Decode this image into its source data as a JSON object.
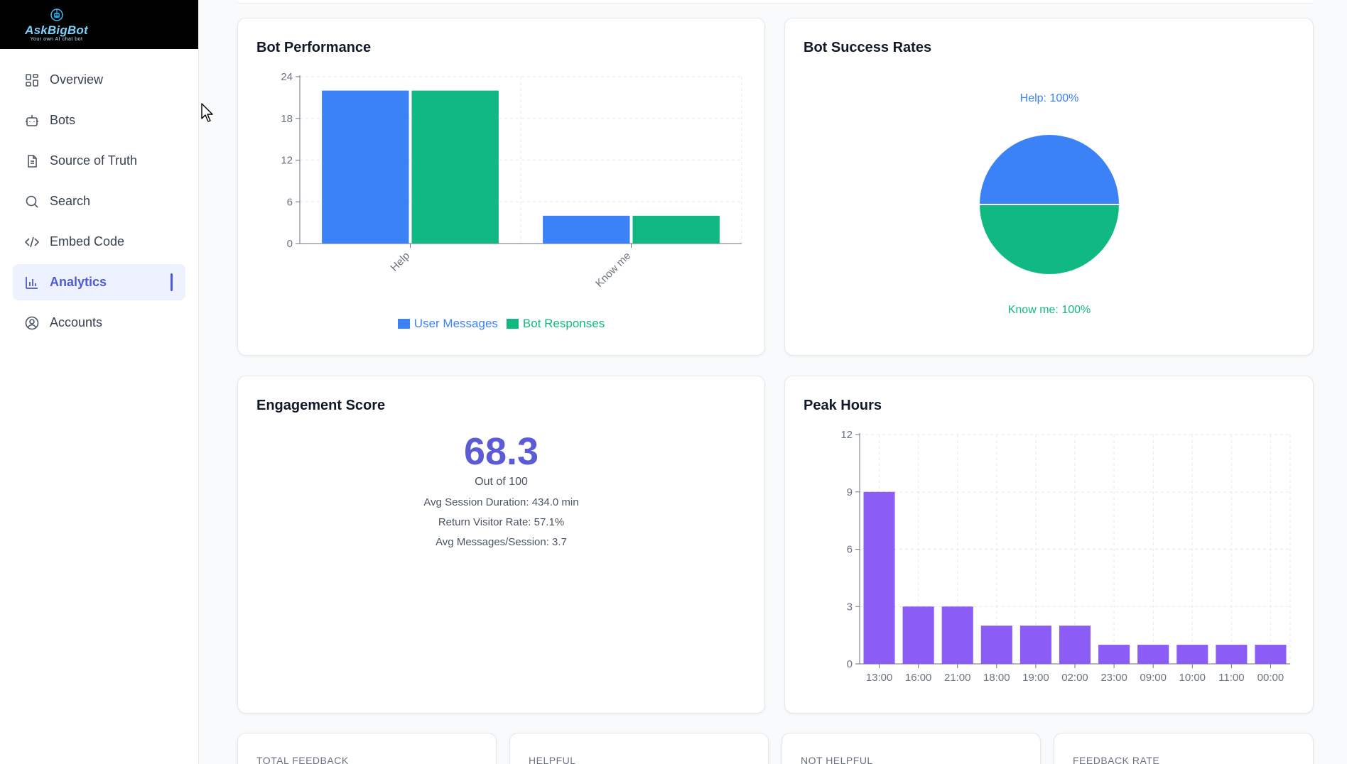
{
  "brand": {
    "name": "AskBigBot",
    "tagline": "Your own AI chat bot"
  },
  "nav": {
    "items": [
      {
        "label": "Overview",
        "icon": "grid-icon"
      },
      {
        "label": "Bots",
        "icon": "bot-icon"
      },
      {
        "label": "Source of Truth",
        "icon": "document-icon"
      },
      {
        "label": "Search",
        "icon": "search-icon"
      },
      {
        "label": "Embed Code",
        "icon": "code-icon"
      },
      {
        "label": "Analytics",
        "icon": "chart-icon",
        "active": true
      },
      {
        "label": "Accounts",
        "icon": "user-circle-icon"
      }
    ]
  },
  "colors": {
    "accent": "#4f5bd5",
    "blue": "#3b82f6",
    "green": "#10b981",
    "purple": "#8b5cf6",
    "score": "#5b5bd6"
  },
  "cards": {
    "bot_performance": {
      "title": "Bot Performance"
    },
    "bot_success": {
      "title": "Bot Success Rates"
    },
    "engagement": {
      "title": "Engagement Score",
      "score": "68.3",
      "score_sub": "Out of 100",
      "avg_session": "Avg Session Duration: 434.0 min",
      "return_rate": "Return Visitor Rate: 57.1%",
      "avg_messages": "Avg Messages/Session: 3.7"
    },
    "peak_hours": {
      "title": "Peak Hours"
    }
  },
  "feedback": {
    "total": "TOTAL FEEDBACK",
    "helpful": "HELPFUL",
    "not_helpful": "NOT HELPFUL",
    "rate": "FEEDBACK RATE"
  },
  "chart_data": [
    {
      "id": "bot_performance",
      "type": "bar",
      "title": "Bot Performance",
      "categories": [
        "Help",
        "Know me"
      ],
      "series": [
        {
          "name": "User Messages",
          "values": [
            22,
            4
          ],
          "color": "#3b82f6"
        },
        {
          "name": "Bot Responses",
          "values": [
            22,
            4
          ],
          "color": "#10b981"
        }
      ],
      "yticks": [
        0,
        6,
        12,
        18,
        24
      ],
      "ylim": [
        0,
        24
      ],
      "grid": true,
      "legend": "bottom"
    },
    {
      "id": "bot_success",
      "type": "pie",
      "title": "Bot Success Rates",
      "slices": [
        {
          "label": "Help",
          "value": 50,
          "display": "Help: 100%",
          "color": "#3b82f6"
        },
        {
          "label": "Know me",
          "value": 50,
          "display": "Know me: 100%",
          "color": "#10b981"
        }
      ]
    },
    {
      "id": "peak_hours",
      "type": "bar",
      "title": "Peak Hours",
      "categories": [
        "13:00",
        "16:00",
        "21:00",
        "18:00",
        "19:00",
        "02:00",
        "23:00",
        "09:00",
        "10:00",
        "11:00",
        "00:00"
      ],
      "values": [
        9,
        3,
        3,
        2,
        2,
        2,
        1,
        1,
        1,
        1,
        1
      ],
      "yticks": [
        0,
        3,
        6,
        9,
        12
      ],
      "ylim": [
        0,
        12
      ],
      "grid": true,
      "color": "#8b5cf6"
    }
  ]
}
